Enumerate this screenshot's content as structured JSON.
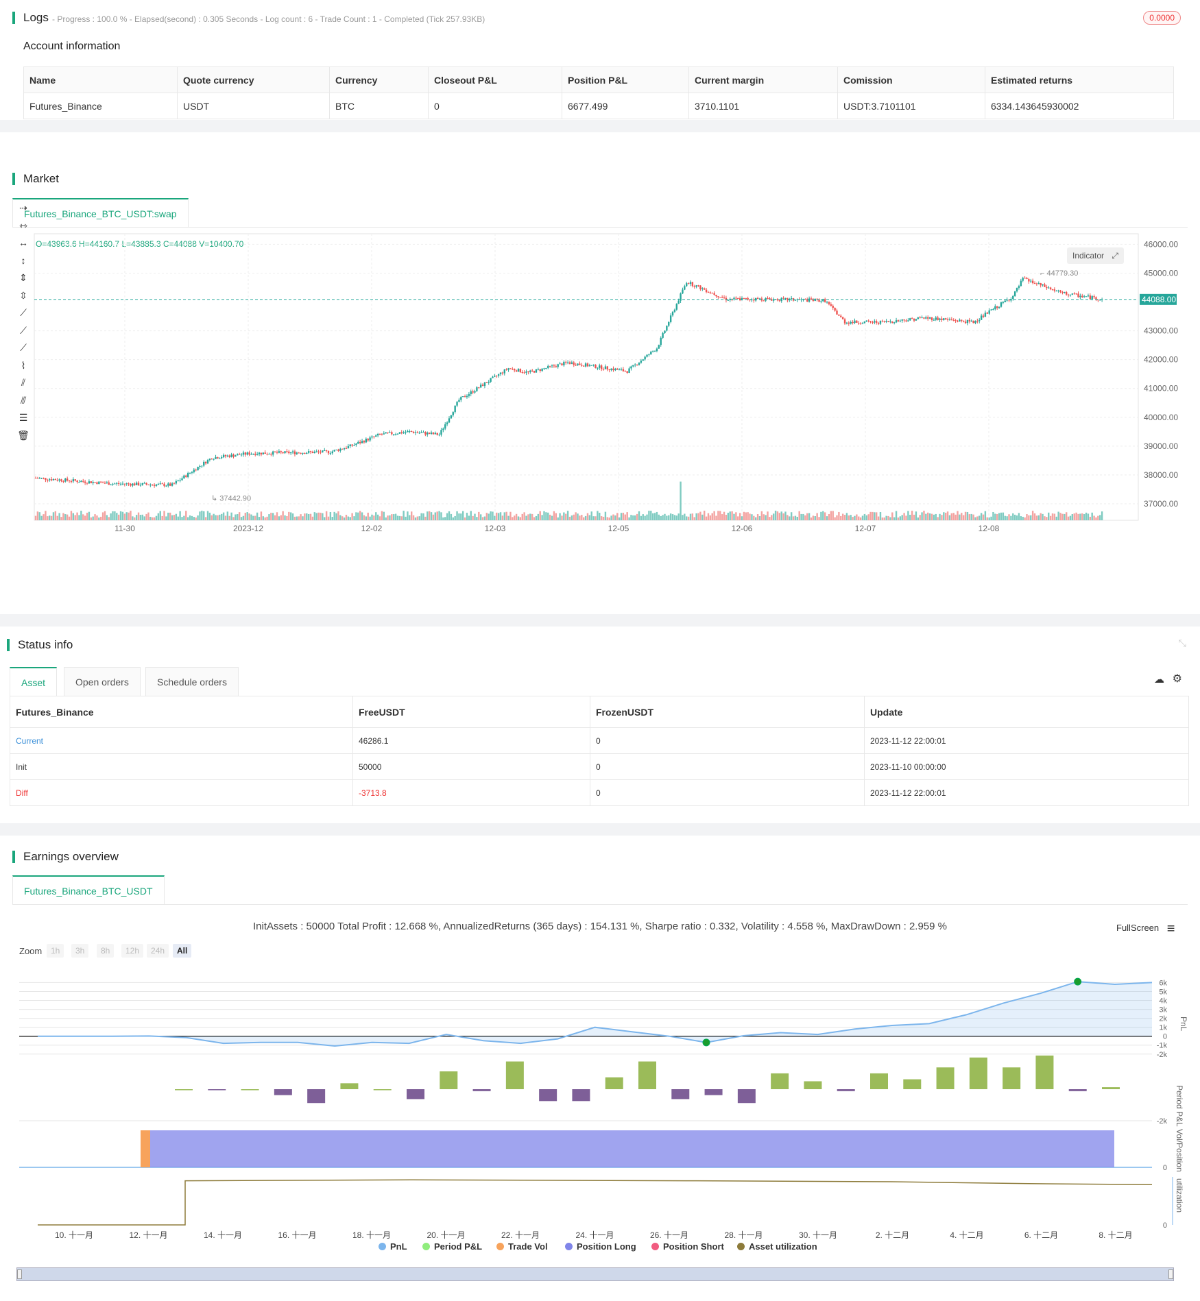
{
  "logs": {
    "title": "Logs",
    "status_line": "- Progress : 100.0 % - Elapsed(second) : 0.305  Seconds - Log count : 6 - Trade Count : 1 - Completed (Tick 257.93KB)",
    "badge": "0.0000",
    "account_title": "Account information",
    "account_headers": [
      "Name",
      "Quote currency",
      "Currency",
      "Closeout P&L",
      "Position P&L",
      "Current margin",
      "Comission",
      "Estimated returns"
    ],
    "account_row": [
      "Futures_Binance",
      "USDT",
      "BTC",
      "0",
      "6677.499",
      "3710.1101",
      "USDT:3.7101101",
      "6334.143645930002"
    ]
  },
  "market": {
    "title": "Market",
    "tab": "Futures_Binance_BTC_USDT:swap",
    "ohlc": "O=43963.6 H=44160.7 L=43885.3 C=44088 V=10400.70",
    "indicator_button": "Indicator",
    "last_price": "44088.00",
    "high_label": "44779.30",
    "low_label": "37442.90",
    "y_ticks": [
      "46000.00",
      "45000.00",
      "43000.00",
      "42000.00",
      "41000.00",
      "40000.00",
      "39000.00",
      "38000.00",
      "37000.00"
    ],
    "x_ticks": [
      "11-30",
      "2023-12",
      "12-02",
      "12-03",
      "12-05",
      "12-06",
      "12-07",
      "12-08"
    ],
    "colors": {
      "up": "#26a69a",
      "down": "#ef5350",
      "up_vol": "#7fcbc1",
      "down_vol": "#f3a3a1"
    },
    "tools": [
      "horizontal-ray-icon",
      "horizontal-line-icon",
      "horizontal-segment-icon",
      "vertical-ray-icon",
      "vertical-line-icon",
      "vertical-segment-icon",
      "trend-ray-icon",
      "trend-line-icon",
      "trend-segment-icon",
      "price-label-icon",
      "parallel-channel-icon",
      "multi-line-icon",
      "fib-levels-icon",
      "trash-icon"
    ]
  },
  "status": {
    "title": "Status info",
    "tabs": [
      "Asset",
      "Open orders",
      "Schedule orders"
    ],
    "headers": [
      "Futures_Binance",
      "FreeUSDT",
      "FrozenUSDT",
      "Update"
    ],
    "rows": [
      [
        "Current",
        "46286.1",
        "0",
        "2023-11-12 22:00:01"
      ],
      [
        "Init",
        "50000",
        "0",
        "2023-11-10 00:00:00"
      ],
      [
        "Diff",
        "-3713.8",
        "0",
        "2023-11-12 22:00:01"
      ]
    ]
  },
  "earnings": {
    "title": "Earnings overview",
    "tab": "Futures_Binance_BTC_USDT",
    "summary": "InitAssets : 50000 Total Profit : 12.668 %, AnnualizedReturns (365 days) : 154.131 %, Sharpe ratio : 0.332, Volatility : 4.558 %, MaxDrawDown : 2.959 %",
    "fullscreen": "FullScreen",
    "zoom_label": "Zoom",
    "zoom_buttons": [
      "1h",
      "3h",
      "8h",
      "12h",
      "24h",
      "All"
    ],
    "pnl_ticks": [
      "6k",
      "5k",
      "4k",
      "3k",
      "2k",
      "1k",
      "0",
      "-1k",
      "-2k"
    ],
    "period_tick": "-2k",
    "vol_tick": "0",
    "util_tick": "0",
    "axis_labels": [
      "PnL",
      "Period P&L",
      "Vol/Position",
      "utilization"
    ],
    "x_ticks": [
      "10. 十一月",
      "12. 十一月",
      "14. 十一月",
      "16. 十一月",
      "18. 十一月",
      "20. 十一月",
      "22. 十一月",
      "24. 十一月",
      "26. 十一月",
      "28. 十一月",
      "30. 十一月",
      "2. 十二月",
      "4. 十二月",
      "6. 十二月",
      "8. 十二月"
    ],
    "legend": [
      {
        "label": "PnL",
        "color": "#7cb5ec"
      },
      {
        "label": "Period P&L",
        "color": "#90ed7d"
      },
      {
        "label": "Trade Vol",
        "color": "#f7a35c"
      },
      {
        "label": "Position Long",
        "color": "#8085e9"
      },
      {
        "label": "Position Short",
        "color": "#f15c80"
      },
      {
        "label": "Asset utilization",
        "color": "#8d7b3a"
      }
    ],
    "chart_data": {
      "type": "line",
      "pnl_values": [
        0,
        0,
        0,
        20,
        -150,
        -800,
        -700,
        -700,
        -1100,
        -700,
        -800,
        200,
        -500,
        -800,
        -300,
        1000,
        500,
        0,
        -700,
        50,
        400,
        200,
        800,
        1200,
        1400,
        2400,
        3700,
        4800,
        6100,
        5800,
        6000
      ],
      "period_values": [
        0,
        -50,
        0,
        -300,
        -700,
        300,
        0,
        -500,
        900,
        -100,
        1400,
        -600,
        -600,
        600,
        1400,
        -500,
        -300,
        -700,
        800,
        400,
        -100,
        800,
        500,
        1100,
        1600,
        1100,
        1700,
        -100,
        100
      ],
      "position_long_level": 1,
      "utilization_level": 0.92
    }
  }
}
